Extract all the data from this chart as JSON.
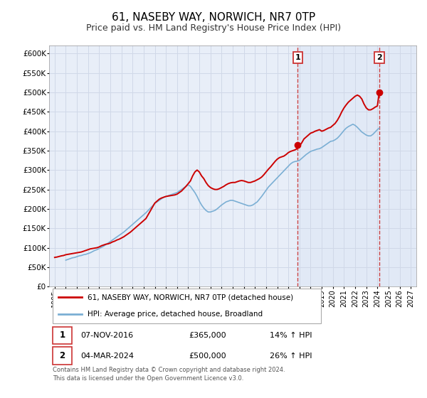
{
  "title": "61, NASEBY WAY, NORWICH, NR7 0TP",
  "subtitle": "Price paid vs. HM Land Registry's House Price Index (HPI)",
  "title_fontsize": 11,
  "subtitle_fontsize": 9,
  "background_color": "#ffffff",
  "plot_bg_color": "#e8eef8",
  "grid_color": "#d0d8e8",
  "red_line_color": "#cc0000",
  "blue_line_color": "#7bafd4",
  "dashed_line_color": "#cc4444",
  "shade_color": "#dce6f5",
  "legend_box_edge": "#aaaaaa",
  "legend_label1": "61, NASEBY WAY, NORWICH, NR7 0TP (detached house)",
  "legend_label2": "HPI: Average price, detached house, Broadland",
  "annotation1_label": "1",
  "annotation2_label": "2",
  "point1_x": 2016.85,
  "point1_y": 365000,
  "point2_x": 2024.17,
  "point2_y": 500000,
  "table_row1": [
    "1",
    "07-NOV-2016",
    "£365,000",
    "14% ↑ HPI"
  ],
  "table_row2": [
    "2",
    "04-MAR-2024",
    "£500,000",
    "26% ↑ HPI"
  ],
  "footer_text": "Contains HM Land Registry data © Crown copyright and database right 2024.\nThis data is licensed under the Open Government Licence v3.0.",
  "ylim": [
    0,
    620000
  ],
  "xlim": [
    1994.5,
    2027.5
  ],
  "yticks": [
    0,
    50000,
    100000,
    150000,
    200000,
    250000,
    300000,
    350000,
    400000,
    450000,
    500000,
    550000,
    600000
  ],
  "ytick_labels": [
    "£0",
    "£50K",
    "£100K",
    "£150K",
    "£200K",
    "£250K",
    "£300K",
    "£350K",
    "£400K",
    "£450K",
    "£500K",
    "£550K",
    "£600K"
  ],
  "xtick_years": [
    1995,
    1996,
    1997,
    1998,
    1999,
    2000,
    2001,
    2002,
    2003,
    2004,
    2005,
    2006,
    2007,
    2008,
    2009,
    2010,
    2011,
    2012,
    2013,
    2014,
    2015,
    2016,
    2017,
    2018,
    2019,
    2020,
    2021,
    2022,
    2023,
    2024,
    2025,
    2026,
    2027
  ],
  "red_x": [
    1995.0,
    1995.2,
    1995.4,
    1995.6,
    1995.8,
    1996.0,
    1996.2,
    1996.4,
    1996.6,
    1996.8,
    1997.0,
    1997.2,
    1997.4,
    1997.6,
    1997.8,
    1998.0,
    1998.2,
    1998.4,
    1998.6,
    1998.8,
    1999.0,
    1999.2,
    1999.4,
    1999.6,
    1999.8,
    2000.0,
    2000.2,
    2000.4,
    2000.6,
    2000.8,
    2001.0,
    2001.2,
    2001.4,
    2001.6,
    2001.8,
    2002.0,
    2002.2,
    2002.4,
    2002.6,
    2002.8,
    2003.0,
    2003.2,
    2003.4,
    2003.6,
    2003.8,
    2004.0,
    2004.2,
    2004.4,
    2004.6,
    2004.8,
    2005.0,
    2005.2,
    2005.4,
    2005.6,
    2005.8,
    2006.0,
    2006.2,
    2006.4,
    2006.6,
    2006.8,
    2007.0,
    2007.2,
    2007.4,
    2007.6,
    2007.8,
    2008.0,
    2008.2,
    2008.4,
    2008.6,
    2008.8,
    2009.0,
    2009.2,
    2009.4,
    2009.6,
    2009.8,
    2010.0,
    2010.2,
    2010.4,
    2010.6,
    2010.8,
    2011.0,
    2011.2,
    2011.4,
    2011.6,
    2011.8,
    2012.0,
    2012.2,
    2012.4,
    2012.6,
    2012.8,
    2013.0,
    2013.2,
    2013.4,
    2013.6,
    2013.8,
    2014.0,
    2014.2,
    2014.4,
    2014.6,
    2014.8,
    2015.0,
    2015.2,
    2015.4,
    2015.6,
    2015.8,
    2016.0,
    2016.2,
    2016.4,
    2016.6,
    2016.8,
    2017.0,
    2017.2,
    2017.4,
    2017.6,
    2017.8,
    2018.0,
    2018.2,
    2018.4,
    2018.6,
    2018.8,
    2019.0,
    2019.2,
    2019.4,
    2019.6,
    2019.8,
    2020.0,
    2020.2,
    2020.4,
    2020.6,
    2020.8,
    2021.0,
    2021.2,
    2021.4,
    2021.6,
    2021.8,
    2022.0,
    2022.2,
    2022.4,
    2022.6,
    2022.8,
    2023.0,
    2023.2,
    2023.4,
    2023.6,
    2023.8,
    2024.0,
    2024.17
  ],
  "red_y": [
    75000,
    76000,
    77500,
    79000,
    80000,
    82000,
    83000,
    84000,
    85000,
    86000,
    87000,
    88000,
    89000,
    91000,
    93000,
    95000,
    97000,
    98000,
    99000,
    100000,
    102000,
    105000,
    107000,
    109000,
    110000,
    112000,
    115000,
    117000,
    120000,
    122000,
    125000,
    128000,
    132000,
    136000,
    140000,
    145000,
    150000,
    155000,
    160000,
    165000,
    170000,
    175000,
    185000,
    195000,
    205000,
    215000,
    220000,
    225000,
    228000,
    230000,
    232000,
    233000,
    234000,
    235000,
    236000,
    238000,
    242000,
    246000,
    252000,
    258000,
    265000,
    272000,
    285000,
    295000,
    300000,
    295000,
    285000,
    278000,
    268000,
    260000,
    255000,
    252000,
    250000,
    250000,
    252000,
    255000,
    258000,
    262000,
    265000,
    267000,
    268000,
    268000,
    270000,
    272000,
    273000,
    272000,
    270000,
    268000,
    268000,
    270000,
    272000,
    275000,
    278000,
    282000,
    288000,
    295000,
    302000,
    308000,
    315000,
    322000,
    328000,
    332000,
    334000,
    336000,
    340000,
    345000,
    348000,
    350000,
    352000,
    355000,
    362000,
    370000,
    380000,
    385000,
    390000,
    395000,
    397000,
    400000,
    402000,
    404000,
    400000,
    402000,
    405000,
    408000,
    410000,
    415000,
    420000,
    428000,
    438000,
    450000,
    460000,
    468000,
    475000,
    480000,
    485000,
    490000,
    493000,
    490000,
    483000,
    470000,
    460000,
    455000,
    455000,
    458000,
    462000,
    465000,
    500000
  ],
  "blue_x": [
    1996.0,
    1996.2,
    1996.4,
    1996.6,
    1996.8,
    1997.0,
    1997.2,
    1997.4,
    1997.6,
    1997.8,
    1998.0,
    1998.2,
    1998.4,
    1998.6,
    1998.8,
    1999.0,
    1999.2,
    1999.4,
    1999.6,
    1999.8,
    2000.0,
    2000.2,
    2000.4,
    2000.6,
    2000.8,
    2001.0,
    2001.2,
    2001.4,
    2001.6,
    2001.8,
    2002.0,
    2002.2,
    2002.4,
    2002.6,
    2002.8,
    2003.0,
    2003.2,
    2003.4,
    2003.6,
    2003.8,
    2004.0,
    2004.2,
    2004.4,
    2004.6,
    2004.8,
    2005.0,
    2005.2,
    2005.4,
    2005.6,
    2005.8,
    2006.0,
    2006.2,
    2006.4,
    2006.6,
    2006.8,
    2007.0,
    2007.2,
    2007.4,
    2007.6,
    2007.8,
    2008.0,
    2008.2,
    2008.4,
    2008.6,
    2008.8,
    2009.0,
    2009.2,
    2009.4,
    2009.6,
    2009.8,
    2010.0,
    2010.2,
    2010.4,
    2010.6,
    2010.8,
    2011.0,
    2011.2,
    2011.4,
    2011.6,
    2011.8,
    2012.0,
    2012.2,
    2012.4,
    2012.6,
    2012.8,
    2013.0,
    2013.2,
    2013.4,
    2013.6,
    2013.8,
    2014.0,
    2014.2,
    2014.4,
    2014.6,
    2014.8,
    2015.0,
    2015.2,
    2015.4,
    2015.6,
    2015.8,
    2016.0,
    2016.2,
    2016.4,
    2016.6,
    2016.8,
    2017.0,
    2017.2,
    2017.4,
    2017.6,
    2017.8,
    2018.0,
    2018.2,
    2018.4,
    2018.6,
    2018.8,
    2019.0,
    2019.2,
    2019.4,
    2019.6,
    2019.8,
    2020.0,
    2020.2,
    2020.4,
    2020.6,
    2020.8,
    2021.0,
    2021.2,
    2021.4,
    2021.6,
    2021.8,
    2022.0,
    2022.2,
    2022.4,
    2022.6,
    2022.8,
    2023.0,
    2023.2,
    2023.4,
    2023.6,
    2023.8,
    2024.0,
    2024.17
  ],
  "blue_y": [
    68000,
    70000,
    72000,
    74000,
    75000,
    77000,
    79000,
    80000,
    82000,
    83000,
    85000,
    87000,
    90000,
    93000,
    95000,
    98000,
    101000,
    104000,
    108000,
    112000,
    116000,
    120000,
    124000,
    128000,
    132000,
    136000,
    140000,
    145000,
    150000,
    155000,
    160000,
    165000,
    170000,
    175000,
    180000,
    185000,
    190000,
    196000,
    202000,
    208000,
    214000,
    218000,
    222000,
    226000,
    230000,
    232000,
    234000,
    236000,
    238000,
    240000,
    242000,
    246000,
    250000,
    254000,
    258000,
    262000,
    258000,
    250000,
    242000,
    232000,
    220000,
    210000,
    202000,
    196000,
    192000,
    192000,
    194000,
    196000,
    200000,
    205000,
    210000,
    214000,
    218000,
    220000,
    222000,
    222000,
    220000,
    218000,
    216000,
    214000,
    212000,
    210000,
    208000,
    208000,
    210000,
    214000,
    218000,
    225000,
    232000,
    240000,
    248000,
    256000,
    262000,
    268000,
    274000,
    280000,
    286000,
    292000,
    298000,
    304000,
    310000,
    316000,
    320000,
    322000,
    323000,
    325000,
    330000,
    335000,
    340000,
    344000,
    348000,
    350000,
    352000,
    354000,
    355000,
    358000,
    362000,
    366000,
    370000,
    374000,
    375000,
    378000,
    382000,
    388000,
    395000,
    402000,
    408000,
    412000,
    415000,
    418000,
    415000,
    410000,
    404000,
    398000,
    394000,
    390000,
    388000,
    388000,
    392000,
    398000,
    404000,
    408000
  ]
}
